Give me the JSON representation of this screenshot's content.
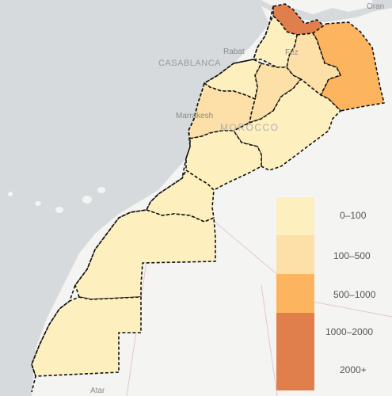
{
  "map": {
    "place_labels": {
      "casablanca": "CASABLANCA",
      "rabat": "Rabat",
      "fez": "Fez",
      "marrakesh": "Marrakesh",
      "morocco": "MOROCCO",
      "oran": "Oran",
      "atar": "Atar"
    },
    "colors": {
      "sea": "#d7dadd",
      "land": "#f4f4f2",
      "border": "#111111",
      "bin_0_100": "#fdefbe",
      "bin_100_500": "#fce0a8",
      "bin_500_1000": "#fdb45e",
      "bin_1000_2000": "#e07f4c"
    }
  },
  "legend": {
    "items": [
      {
        "label": "0–100",
        "color": "#fdefbe"
      },
      {
        "label": "100–500",
        "color": "#fce0a8"
      },
      {
        "label": "500–1000",
        "color": "#fdb45e"
      },
      {
        "label": "1000–2000",
        "color": "#e07f4c"
      },
      {
        "label": "2000+",
        "color": "#e07f4c"
      }
    ]
  }
}
